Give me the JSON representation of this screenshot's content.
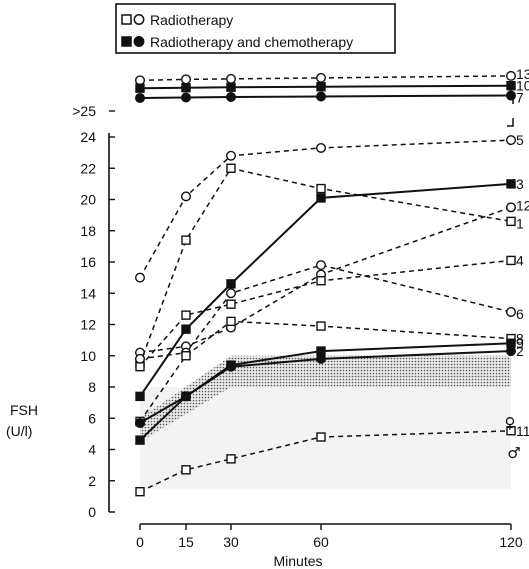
{
  "chart_data": {
    "type": "line",
    "xlabel": "Minutes",
    "ylabel_line1": "FSH",
    "ylabel_line2": "(U/l)",
    "x_ticks": [
      0,
      15,
      30,
      60,
      120
    ],
    "y_ticks": [
      0,
      2,
      4,
      6,
      8,
      10,
      12,
      14,
      16,
      18,
      20,
      22,
      24
    ],
    "y_break_label": ">25",
    "legend": [
      {
        "label": "Radiotherapy",
        "markers": [
          "open-square",
          "open-circle"
        ],
        "style": "dashed"
      },
      {
        "label": "Radiotherapy and chemotherapy",
        "markers": [
          "filled-square",
          "filled-circle"
        ],
        "style": "solid"
      }
    ],
    "reference_ranges": [
      {
        "sex_symbol": "♀",
        "low": 8.0,
        "high": 10.0
      },
      {
        "sex_symbol": "♂",
        "low": 1.5,
        "high": 8.0
      }
    ],
    "series": [
      {
        "label": "13",
        "marker": "open-circle",
        "style": "dashed",
        "above_scale": true,
        "y": [
          28.6,
          28.7,
          28.75,
          28.85,
          29.05
        ]
      },
      {
        "label": "10",
        "marker": "filled-square",
        "style": "solid",
        "above_scale": true,
        "y": [
          27.8,
          27.85,
          27.9,
          27.95,
          28.05
        ]
      },
      {
        "label": "7",
        "marker": "filled-circle",
        "style": "solid",
        "above_scale": true,
        "y": [
          26.8,
          26.85,
          26.9,
          26.95,
          27.05
        ]
      },
      {
        "label": "5",
        "marker": "open-circle",
        "style": "dashed",
        "y": [
          15.0,
          20.2,
          22.8,
          23.3,
          23.8
        ]
      },
      {
        "label": "3",
        "marker": "filled-square",
        "style": "solid",
        "y": [
          7.4,
          11.7,
          14.6,
          20.1,
          21.0
        ]
      },
      {
        "label": "12",
        "marker": "open-circle",
        "style": "dashed",
        "y": [
          10.2,
          10.6,
          11.8,
          15.2,
          19.5
        ]
      },
      {
        "label": "1",
        "marker": "open-square",
        "style": "dashed",
        "y": [
          9.5,
          17.4,
          22.0,
          20.7,
          18.6
        ]
      },
      {
        "label": "4",
        "marker": "open-square",
        "style": "dashed",
        "y": [
          9.3,
          12.6,
          13.3,
          14.8,
          16.1
        ]
      },
      {
        "label": "6",
        "marker": "open-circle",
        "style": "dashed",
        "y": [
          9.8,
          10.2,
          14.0,
          15.8,
          12.8
        ]
      },
      {
        "label": "8",
        "marker": "open-square",
        "style": "dashed",
        "y": [
          5.8,
          10.0,
          12.2,
          11.9,
          11.1
        ]
      },
      {
        "label": "9",
        "marker": "filled-square",
        "style": "solid",
        "y": [
          4.6,
          7.4,
          9.4,
          10.3,
          10.8
        ]
      },
      {
        "label": "2",
        "marker": "filled-circle",
        "style": "solid",
        "y": [
          5.7,
          7.4,
          9.3,
          9.8,
          10.3
        ]
      },
      {
        "label": "11",
        "marker": "open-square",
        "style": "dashed",
        "y": [
          1.3,
          2.7,
          3.4,
          4.8,
          5.2
        ]
      }
    ]
  },
  "colors": {
    "ink": "#111111",
    "shade": "#bdbdbd"
  }
}
